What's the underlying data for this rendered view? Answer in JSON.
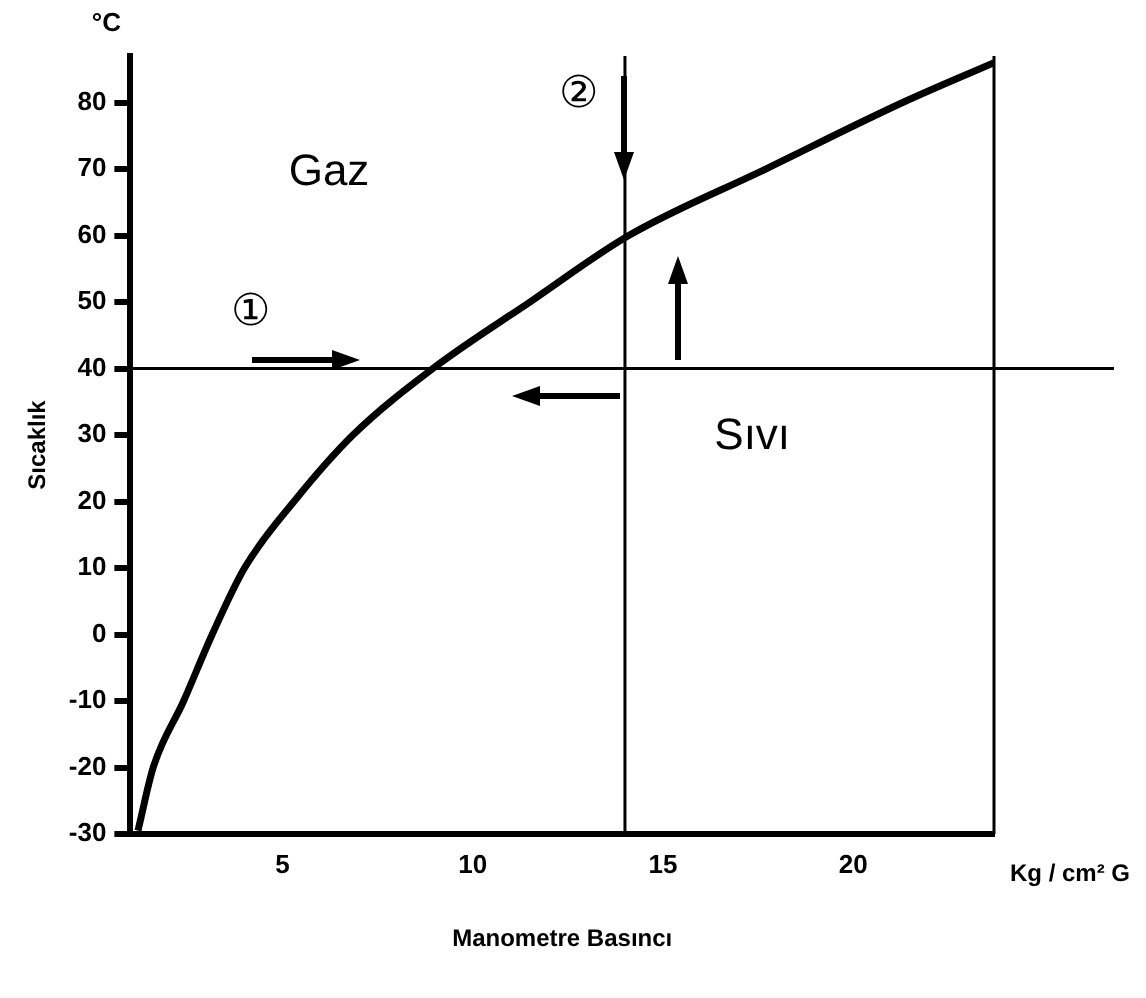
{
  "chart_data": {
    "type": "line",
    "xlabel": "Manometre Basıncı",
    "ylabel": "Sıcaklık",
    "x": [
      1.2,
      1.6,
      2.4,
      3.15,
      4.0,
      5.3,
      6.85,
      8.95,
      11.5,
      14.1,
      17.7,
      21.3,
      23.7
    ],
    "series": [
      {
        "color": "#000000",
        "values": [
          -29.5,
          -20,
          -10,
          0,
          10,
          20,
          30,
          40,
          50,
          60,
          70,
          80,
          86
        ]
      }
    ],
    "xlim": [
      1,
      23.7
    ],
    "xticks": [
      5,
      10,
      15,
      20
    ],
    "ylim": [
      -30,
      87
    ],
    "yticks": [
      -30,
      -20,
      -10,
      0,
      10,
      20,
      30,
      40,
      50,
      60,
      70,
      80
    ],
    "ref_lines": [
      {
        "axis": "y",
        "value": 40,
        "color": "#000000"
      },
      {
        "axis": "x",
        "value": 14,
        "color": "#000000"
      }
    ],
    "annotations": [
      "°C",
      "Kg / cm² G",
      "Gaz",
      "Sıvı",
      "①",
      "②"
    ],
    "grid": false,
    "legend": false,
    "marker": "none",
    "line_style": "solid"
  }
}
